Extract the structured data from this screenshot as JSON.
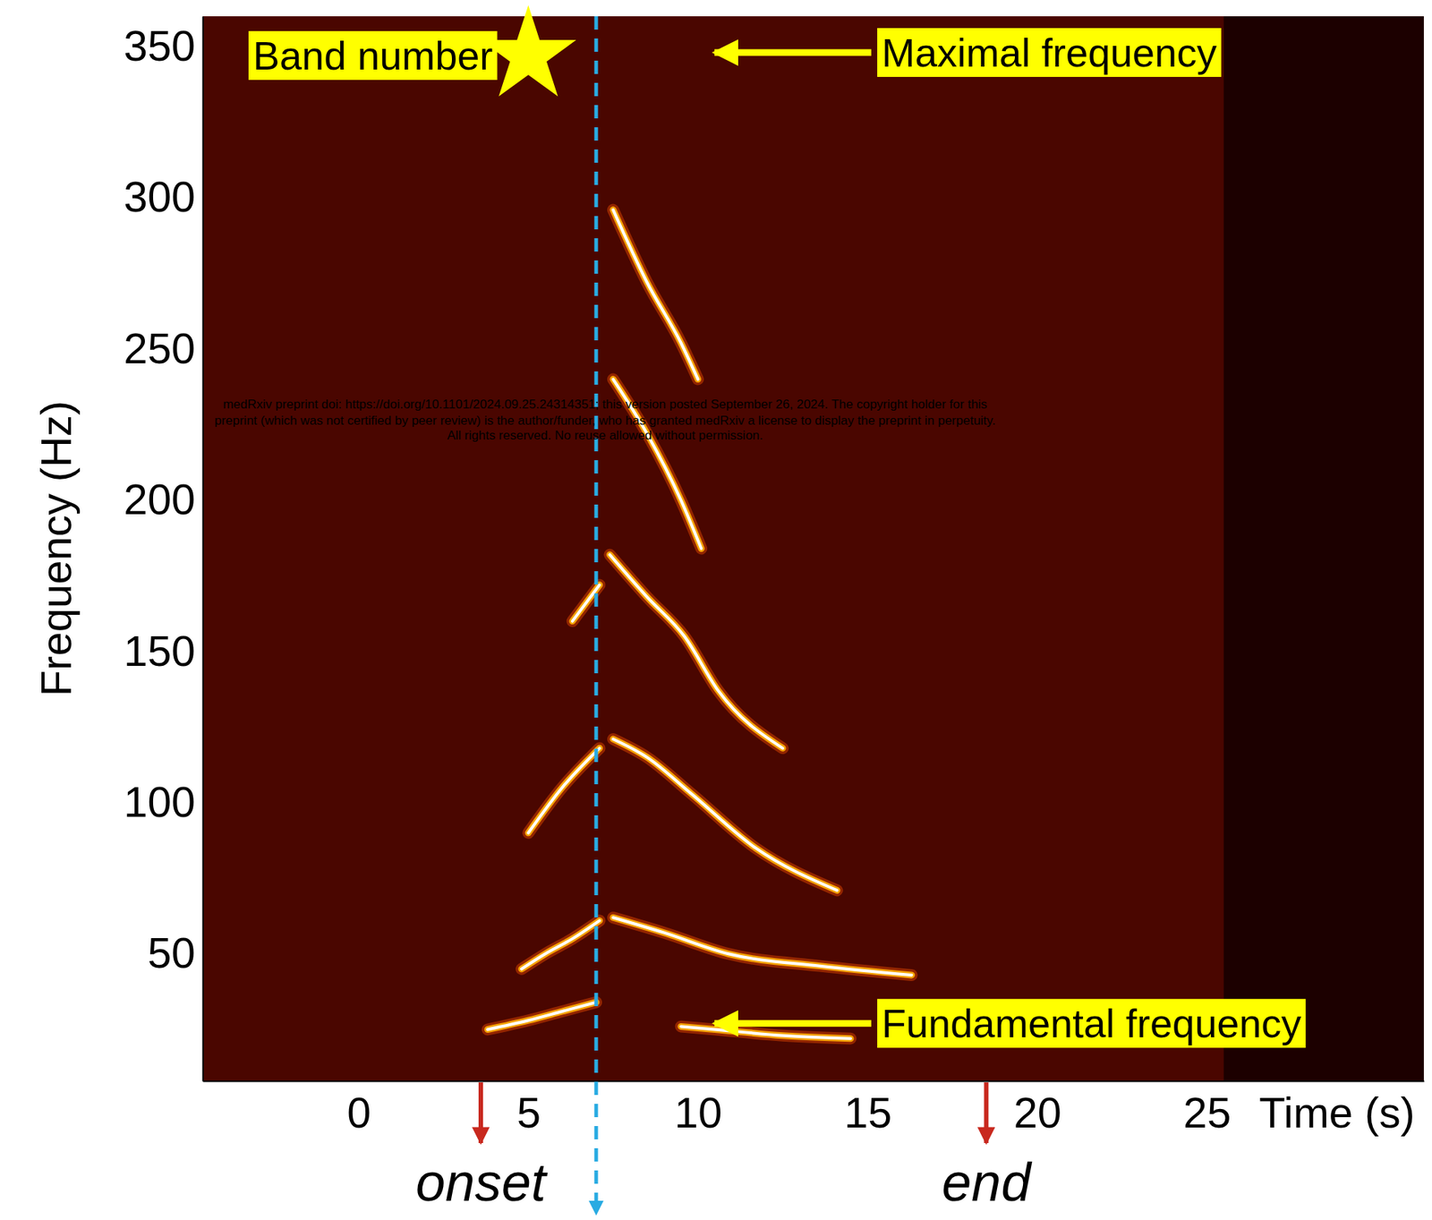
{
  "chart_data": {
    "type": "spectrogram",
    "x_label": "Time (s)",
    "y_label": "Frequency (Hz)",
    "xlim": [
      -4.6,
      31.4
    ],
    "xticks": [
      0,
      5,
      10,
      15,
      20,
      25
    ],
    "ylim": [
      8,
      360
    ],
    "yticks": [
      50,
      100,
      150,
      200,
      250,
      300,
      350
    ],
    "signal_x": [
      -4.6,
      25.5
    ],
    "series": [
      {
        "x": [
          3.8,
          5,
          6,
          7
        ],
        "values": [
          25,
          28,
          31,
          34
        ]
      },
      {
        "x": [
          4.8,
          5.5,
          6.3,
          7.1
        ],
        "values": [
          45,
          50,
          55,
          61
        ]
      },
      {
        "x": [
          5,
          6,
          7.1
        ],
        "values": [
          90,
          105,
          118
        ]
      },
      {
        "x": [
          6.3,
          7.1
        ],
        "values": [
          160,
          172
        ]
      },
      {
        "x": [
          9.5,
          10.5,
          12.5,
          14.5
        ],
        "values": [
          26,
          25,
          23,
          22
        ]
      },
      {
        "x": [
          7.5,
          9,
          10.9,
          13.6,
          16.3
        ],
        "values": [
          62,
          57,
          50,
          46,
          43
        ]
      },
      {
        "x": [
          7.5,
          8.5,
          9.8,
          11.7,
          14.1
        ],
        "values": [
          121,
          115,
          103,
          85,
          71
        ]
      },
      {
        "x": [
          7.4,
          8.5,
          9.6,
          10.6,
          12.5
        ],
        "values": [
          182,
          168,
          155,
          137,
          118
        ]
      },
      {
        "x": [
          7.5,
          8.5,
          9.5,
          10.1
        ],
        "values": [
          240,
          222,
          200,
          184
        ]
      },
      {
        "x": [
          7.5,
          8.5,
          9.5,
          10
        ],
        "values": [
          296,
          272,
          252,
          240
        ]
      }
    ],
    "vlines": [
      {
        "label": "onset",
        "x": 3.6,
        "color": "#c8281e"
      },
      {
        "x": 7.0,
        "color": "#29abe2",
        "line_style": "dashed"
      },
      {
        "label": "end",
        "x": 18.5,
        "color": "#c8281e"
      }
    ],
    "annotations": [
      {
        "text": "Band number",
        "x": 5.0,
        "y": 347,
        "marker": "star"
      },
      {
        "text": "Maximal frequency",
        "x": 10.4,
        "y": 348
      },
      {
        "text": "Fundamental frequency",
        "x": 10.4,
        "y": 27
      }
    ],
    "watermark": [
      "medRxiv preprint doi: https://doi.org/10.1101/2024.09.25.24314351; this version posted September 26, 2024. The copyright holder for this",
      "preprint (which was not certified by peer review) is the author/funder, who has granted medRxiv a license to display the preprint in perpetuity.",
      "All rights reserved. No reuse allowed without permission."
    ]
  }
}
